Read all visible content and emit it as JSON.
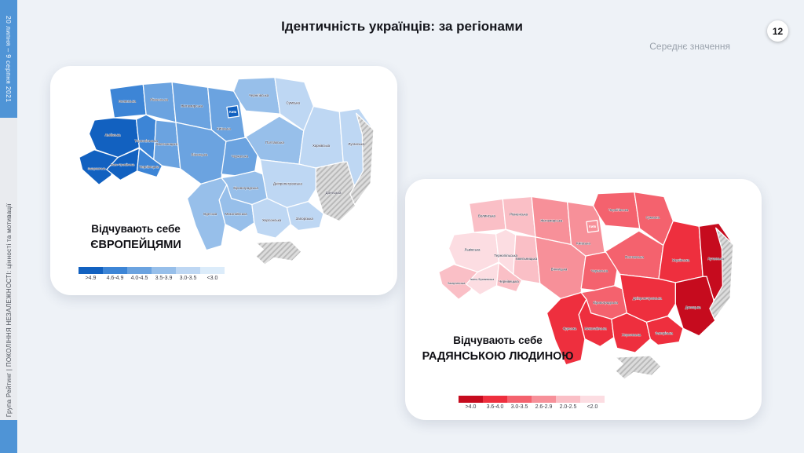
{
  "sidebar": {
    "date_ribbon": "20 липня – 9 серпня 2021",
    "footer_ribbon": "Група Рейтинг | ПОКОЛІННЯ НЕЗАЛЕЖНОСТІ: цінності та мотивації"
  },
  "header": {
    "title": "Ідентичність українців: за регіонами",
    "page_number": "12",
    "note": "Середнє значення"
  },
  "regions": {
    "volyn": "Волинська",
    "rivne": "Рівненська",
    "zhytomyr": "Житомирська",
    "kyivska": "Київська",
    "kyiv_city": "Київ",
    "chernihiv": "Чернігівська",
    "sumy": "Сумська",
    "lviv": "Львівська",
    "ternopil": "Тернопільська",
    "khmelnytskyi": "Хмельницька",
    "vinnytsia": "Вінницька",
    "cherkasy": "Черкаська",
    "poltava": "Полтавська",
    "kharkiv": "Харківська",
    "luhansk": "Луганська",
    "donetsk": "Донецька",
    "dnipro": "Дніпропетровська",
    "kirovohrad": "Кіровоградська",
    "mykolaiv": "Миколаївська",
    "odesa": "Одеська",
    "kherson": "Херсонська",
    "zaporizhzhia": "Запорізька",
    "chernivtsi": "Чернівецька",
    "ivano": "Івано-Франківська",
    "zakarpattia": "Закарпатська",
    "crimea": "",
    "occupied": ""
  },
  "maps": [
    {
      "name": "feel-european",
      "caption_line1": "Відчувають себе",
      "caption_line2": "ЄВРОПЕЙЦЯМИ",
      "legend": [
        {
          "label": ">4.9",
          "color": "#1261c0"
        },
        {
          "label": "4.6-4.9",
          "color": "#3d85d6"
        },
        {
          "label": "4.0-4.5",
          "color": "#6ba3e0"
        },
        {
          "label": "3.5-3.9",
          "color": "#97bfea"
        },
        {
          "label": "3.0-3.5",
          "color": "#bed7f3"
        },
        {
          "label": "<3.0",
          "color": "#dcecfa"
        }
      ],
      "region_colors": {
        "volyn": "#3d85d6",
        "rivne": "#6ba3e0",
        "zhytomyr": "#6ba3e0",
        "kyivska": "#6ba3e0",
        "kyiv_city": "#1261c0",
        "chernihiv": "#97bfea",
        "sumy": "#bed7f3",
        "lviv": "#1261c0",
        "ternopil": "#3d85d6",
        "khmelnytskyi": "#6ba3e0",
        "vinnytsia": "#6ba3e0",
        "cherkasy": "#6ba3e0",
        "poltava": "#97bfea",
        "kharkiv": "#bed7f3",
        "luhansk": "#bed7f3",
        "donetsk": "hatch",
        "dnipro": "#bed7f3",
        "kirovohrad": "#97bfea",
        "mykolaiv": "#97bfea",
        "odesa": "#97bfea",
        "kherson": "#bed7f3",
        "zaporizhzhia": "#bed7f3",
        "chernivtsi": "#3d85d6",
        "ivano": "#1261c0",
        "zakarpattia": "#1261c0",
        "crimea": "hatch",
        "occupied": "hatch"
      }
    },
    {
      "name": "feel-soviet",
      "caption_line1": "Відчувають себе",
      "caption_line2": "РАДЯНСЬКОЮ ЛЮДИНОЮ",
      "legend": [
        {
          "label": ">4.0",
          "color": "#c60b1e"
        },
        {
          "label": "3.6-4.0",
          "color": "#ee2f3e"
        },
        {
          "label": "3.0-3.5",
          "color": "#f4626e"
        },
        {
          "label": "2.6-2.9",
          "color": "#f79099"
        },
        {
          "label": "2.0-2.5",
          "color": "#fabfc6"
        },
        {
          "label": "<2.0",
          "color": "#fcdde2"
        }
      ],
      "region_colors": {
        "volyn": "#fabfc6",
        "rivne": "#fabfc6",
        "zhytomyr": "#f79099",
        "kyivska": "#f79099",
        "kyiv_city": "#f79099",
        "chernihiv": "#f4626e",
        "sumy": "#f4626e",
        "lviv": "#fcdde2",
        "ternopil": "#fcdde2",
        "khmelnytskyi": "#fabfc6",
        "vinnytsia": "#f79099",
        "cherkasy": "#f4626e",
        "poltava": "#f4626e",
        "kharkiv": "#ee2f3e",
        "luhansk": "#c60b1e",
        "donetsk": "#c60b1e",
        "dnipro": "#ee2f3e",
        "kirovohrad": "#f4626e",
        "mykolaiv": "#ee2f3e",
        "odesa": "#ee2f3e",
        "kherson": "#ee2f3e",
        "zaporizhzhia": "#ee2f3e",
        "chernivtsi": "#fabfc6",
        "ivano": "#fcdde2",
        "zakarpattia": "#fabfc6",
        "crimea": "hatch",
        "occupied": "hatch"
      }
    }
  ]
}
